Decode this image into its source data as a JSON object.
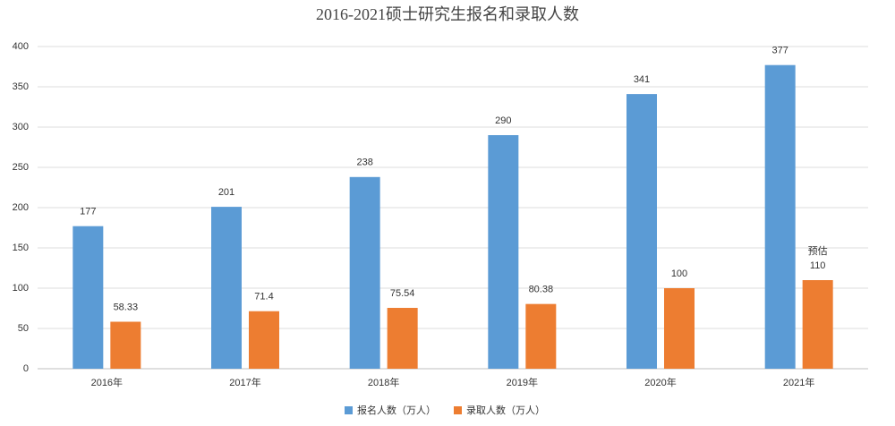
{
  "chart_data": {
    "type": "bar",
    "title": "2016-2021硕士研究生报名和录取人数",
    "categories": [
      "2016年",
      "2017年",
      "2018年",
      "2019年",
      "2020年",
      "2021年"
    ],
    "series": [
      {
        "name": "报名人数（万人）",
        "color": "#5b9bd5",
        "values": [
          177,
          201,
          238,
          290,
          341,
          377
        ]
      },
      {
        "name": "录取人数（万人）",
        "color": "#ed7d31",
        "values": [
          58.33,
          71.4,
          75.54,
          80.38,
          100,
          110
        ]
      }
    ],
    "annotation": "预估",
    "ylim": [
      0,
      400
    ],
    "yticks": [
      0,
      50,
      100,
      150,
      200,
      250,
      300,
      350,
      400
    ],
    "grid": true,
    "legend": "bottom"
  }
}
